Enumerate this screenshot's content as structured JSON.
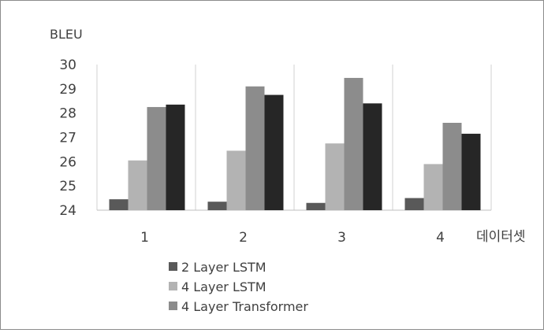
{
  "chart_data": {
    "type": "bar",
    "ylabel": "BLEU",
    "xlabel": "데이터셋",
    "categories": [
      "1",
      "2",
      "3",
      "4"
    ],
    "ylim": [
      24,
      30
    ],
    "yticks": [
      24,
      25,
      26,
      27,
      28,
      29,
      30
    ],
    "grid": false,
    "legend_position": "bottom",
    "series": [
      {
        "name": "2 Layer LSTM",
        "color": "#595959",
        "values": [
          24.45,
          24.35,
          24.3,
          24.5
        ]
      },
      {
        "name": "4 Layer LSTM",
        "color": "#b3b3b3",
        "values": [
          26.05,
          26.45,
          26.75,
          25.9
        ]
      },
      {
        "name": "4 Layer Transformer",
        "color": "#8c8c8c",
        "values": [
          28.25,
          29.1,
          29.45,
          27.6
        ]
      },
      {
        "name": "",
        "color": "#262626",
        "values": [
          28.35,
          28.75,
          28.4,
          27.15
        ]
      }
    ]
  }
}
